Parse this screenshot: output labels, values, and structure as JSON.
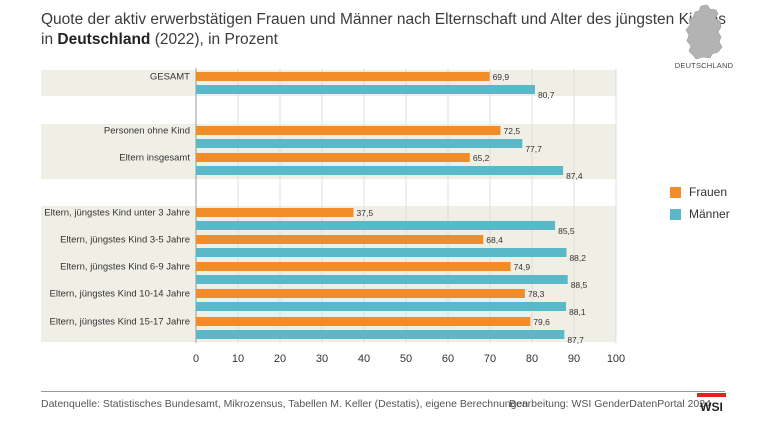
{
  "header": {
    "title_line1": "Quote der aktiv erwerbstätigen Frauen und Männer nach Elternschaft und Alter des jüngsten Kindes",
    "title_line2_pre": "in ",
    "title_line2_bold": "Deutschland",
    "title_line2_post": " (2022), in Prozent"
  },
  "map": {
    "label": "DEUTSCHLAND",
    "icon": "germany-map-icon"
  },
  "legend": {
    "frauen": "Frauen",
    "maenner": "Männer"
  },
  "colors": {
    "frauen": "#f28c28",
    "maenner": "#5bb8c8",
    "band": "#f0efe6",
    "grid": "#cfcfcf"
  },
  "chart_data": {
    "type": "bar",
    "orientation": "horizontal",
    "categories": [
      "GESAMT",
      "Personen ohne Kind",
      "Eltern insgesamt",
      "Eltern, jüngstes Kind unter 3 Jahre",
      "Eltern, jüngstes Kind 3-5 Jahre",
      "Eltern, jüngstes Kind 6-9 Jahre",
      "Eltern, jüngstes Kind 10-14 Jahre",
      "Eltern, jüngstes Kind 15-17 Jahre"
    ],
    "groups": [
      [
        0
      ],
      [
        1,
        2
      ],
      [
        3,
        4,
        5,
        6,
        7
      ]
    ],
    "series": [
      {
        "name": "Frauen",
        "values": [
          69.9,
          72.5,
          65.2,
          37.5,
          68.4,
          74.9,
          78.3,
          79.6
        ],
        "labels": [
          "69,9",
          "72,5",
          "65,2",
          "37,5",
          "68,4",
          "74,9",
          "78,3",
          "79,6"
        ]
      },
      {
        "name": "Männer",
        "values": [
          80.7,
          77.7,
          87.4,
          85.5,
          88.2,
          88.5,
          88.1,
          87.7
        ],
        "labels": [
          "80,7",
          "77,7",
          "87,4",
          "85,5",
          "88,2",
          "88,5",
          "88,1",
          "87,7"
        ]
      }
    ],
    "xlim": [
      0,
      100
    ],
    "xticks": [
      0,
      10,
      20,
      30,
      40,
      50,
      60,
      70,
      80,
      90,
      100
    ],
    "grid": true
  },
  "footer": {
    "source": "Datenquelle: Statistisches Bundesamt, Mikrozensus, Tabellen M. Keller (Destatis), eigene Berechnungen",
    "credit": "Bearbeitung: WSI GenderDatenPortal 2024",
    "logo_text": "WSI"
  }
}
